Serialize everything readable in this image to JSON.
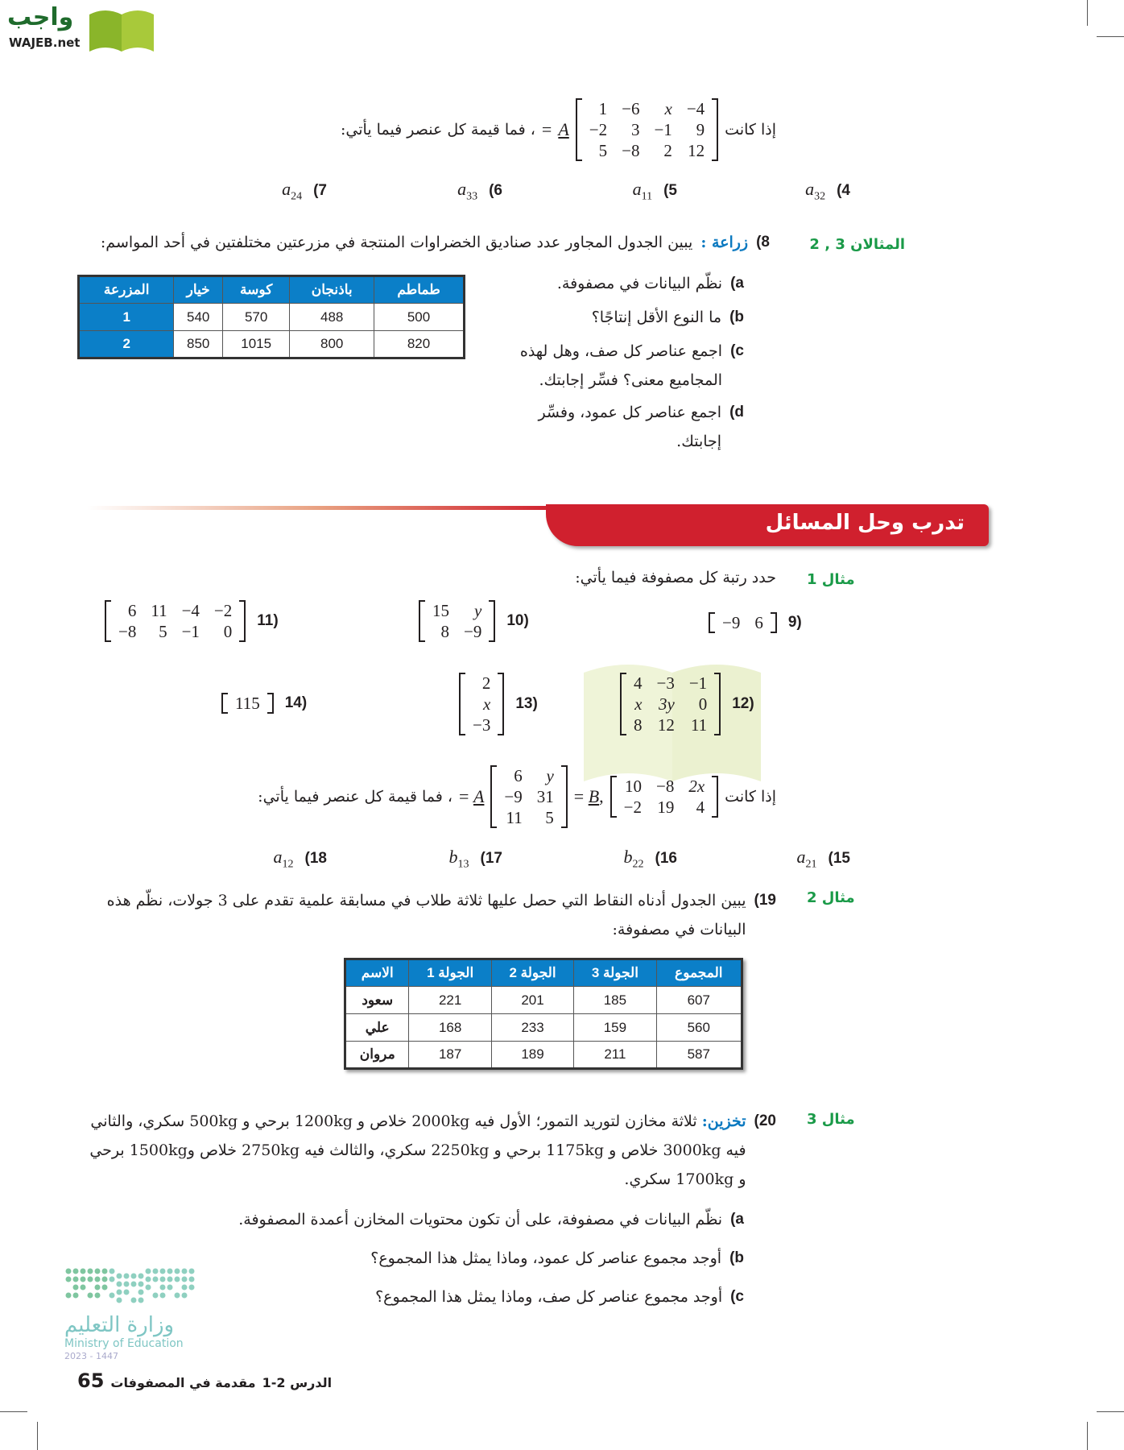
{
  "logo": {
    "text_ar": "واجب",
    "text_en": "WAJEB.net"
  },
  "intro1": {
    "prefix": "إذا كانت",
    "suffix": "، فما قيمة كل عنصر فيما يأتي:",
    "var": "A",
    "matrix": [
      [
        "1",
        "−6",
        "x",
        "−4"
      ],
      [
        "−2",
        "3",
        "−1",
        "9"
      ],
      [
        "5",
        "−8",
        "2",
        "12"
      ]
    ]
  },
  "items_a": [
    {
      "n": "4)",
      "var": "a",
      "sub": "32"
    },
    {
      "n": "5)",
      "var": "a",
      "sub": "11"
    },
    {
      "n": "6)",
      "var": "a",
      "sub": "33"
    },
    {
      "n": "7)",
      "var": "a",
      "sub": "24"
    }
  ],
  "p8": {
    "ref": "المثالان 3 , 2",
    "n": "8)",
    "topic": "زراعة :",
    "text": "يبين الجدول المجاور عدد صناديق الخضراوات المنتجة في مزرعتين مختلفتين في أحد المواسم:",
    "table": {
      "headers": [
        "المزرعة",
        "خيار",
        "كوسة",
        "باذنجان",
        "طماطم"
      ],
      "rows": [
        [
          "1",
          "540",
          "570",
          "488",
          "500"
        ],
        [
          "2",
          "850",
          "1015",
          "800",
          "820"
        ]
      ]
    },
    "parts": [
      {
        "l": "a)",
        "t": "نظّم البيانات في مصفوفة."
      },
      {
        "l": "b)",
        "t": "ما النوع الأقل إنتاجًا؟"
      },
      {
        "l": "c)",
        "t": "اجمع عناصر كل صف، وهل لهذه المجاميع معنى؟ فسِّر إجابتك."
      },
      {
        "l": "d)",
        "t": "اجمع عناصر كل عمود، وفسِّر إجابتك."
      }
    ]
  },
  "banner": {
    "title": "تدرب وحل المسائل",
    "color": "#d0202e"
  },
  "ex1": {
    "ref": "مثال 1",
    "text": "حدد رتبة كل مصفوفة فيما يأتي:"
  },
  "m9": {
    "n": "9)",
    "rows": [
      [
        "−9",
        "6"
      ]
    ]
  },
  "m10": {
    "n": "10)",
    "rows": [
      [
        "15",
        "y"
      ],
      [
        "8",
        "−9"
      ]
    ]
  },
  "m11": {
    "n": "11)",
    "rows": [
      [
        "6",
        "11",
        "−4",
        "−2"
      ],
      [
        "−8",
        "5",
        "−1",
        "0"
      ]
    ]
  },
  "m12": {
    "n": "12)",
    "rows": [
      [
        "4",
        "−3",
        "−1"
      ],
      [
        "x",
        "3y",
        "0"
      ],
      [
        "8",
        "12",
        "11"
      ]
    ]
  },
  "m13": {
    "n": "13)",
    "rows": [
      [
        "2"
      ],
      [
        "x"
      ],
      [
        "−3"
      ]
    ]
  },
  "m14": {
    "n": "14)",
    "rows": [
      [
        "115"
      ]
    ]
  },
  "intro2": {
    "prefix": "إذا كانت",
    "suffix": "، فما قيمة كل عنصر فيما يأتي:",
    "varB": "B",
    "varA": "A",
    "B": [
      [
        "10",
        "−8",
        "2x"
      ],
      [
        "−2",
        "19",
        "4"
      ]
    ],
    "A": [
      [
        "6",
        "y"
      ],
      [
        "−9",
        "31"
      ],
      [
        "11",
        "5"
      ]
    ]
  },
  "items_b": [
    {
      "n": "15)",
      "var": "a",
      "sub": "21"
    },
    {
      "n": "16)",
      "var": "b",
      "sub": "22"
    },
    {
      "n": "17)",
      "var": "b",
      "sub": "13"
    },
    {
      "n": "18)",
      "var": "a",
      "sub": "12"
    }
  ],
  "p19": {
    "ref": "مثال 2",
    "n": "19)",
    "text": "يبين الجدول أدناه النقاط التي حصل عليها ثلاثة طلاب في مسابقة علمية تقدم على 3 جولات، نظّم هذه البيانات في مصفوفة:",
    "table": {
      "headers": [
        "الاسم",
        "الجولة 1",
        "الجولة 2",
        "الجولة 3",
        "المجموع"
      ],
      "rows": [
        [
          "سعود",
          "221",
          "201",
          "185",
          "607"
        ],
        [
          "علي",
          "168",
          "233",
          "159",
          "560"
        ],
        [
          "مروان",
          "187",
          "189",
          "211",
          "587"
        ]
      ]
    }
  },
  "p20": {
    "ref": "مثال 3",
    "n": "20)",
    "topic": "تخزين:",
    "text": "ثلاثة مخازن لتوريد التمور؛ الأول فيه 2000kg خلاص و 1200kg برحي و 500kg سكري، والثاني فيه 3000kg خلاص و 1175kg برحي و 2250kg سكري، والثالث فيه 2750kg خلاص و1500kg برحي و 1700kg سكري.",
    "parts": [
      {
        "l": "a)",
        "t": "نظّم البيانات في مصفوفة، على أن تكون محتويات المخازن أعمدة المصفوفة."
      },
      {
        "l": "b)",
        "t": "أوجد مجموع عناصر كل عمود، وماذا يمثل هذا المجموع؟"
      },
      {
        "l": "c)",
        "t": "أوجد مجموع عناصر كل صف، وماذا يمثل هذا المجموع؟"
      }
    ]
  },
  "ministry": {
    "ar": "وزارة التعليم",
    "en": "Ministry of Education",
    "year": "2023 - 1447"
  },
  "footer": {
    "lesson": "الدرس 2-1",
    "title": "مقدمة في المصفوفات",
    "page": "65"
  },
  "watermark": {
    "ar": "واجب",
    "en": "WAJEB.net"
  }
}
